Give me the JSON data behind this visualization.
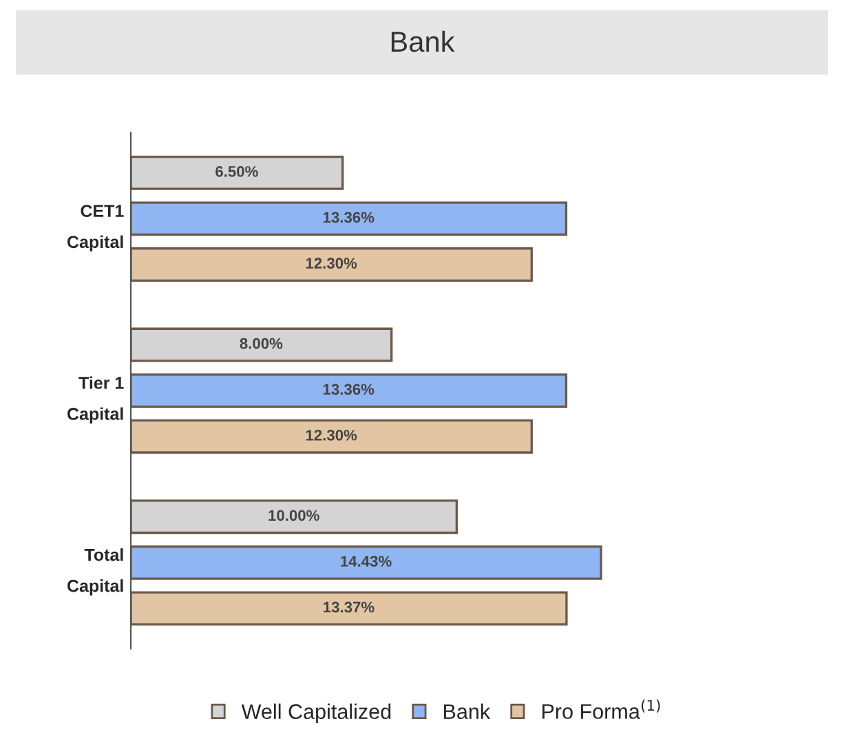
{
  "chart_data": {
    "type": "bar",
    "title": "Bank",
    "orientation": "horizontal",
    "categories": [
      "CET1\nCapital",
      "Tier 1\nCapital",
      "Total\nCapital"
    ],
    "series": [
      {
        "name": "Well Capitalized",
        "color": "#d4d4d4",
        "values": [
          6.5,
          8.0,
          10.0
        ],
        "value_labels": [
          "6.50%",
          "8.00%",
          "10.00%"
        ]
      },
      {
        "name": "Bank",
        "color": "#8fb5f2",
        "values": [
          13.36,
          13.36,
          14.43
        ],
        "value_labels": [
          "13.36%",
          "13.36%",
          "14.43%"
        ]
      },
      {
        "name": "Pro Forma$^{(1)}$",
        "color": "#e2c6a4",
        "values": [
          12.3,
          12.3,
          13.37
        ],
        "value_labels": [
          "12.30%",
          "12.30%",
          "13.37%"
        ]
      }
    ],
    "tick_labels": "y",
    "grid": false,
    "legend": "bottom"
  }
}
